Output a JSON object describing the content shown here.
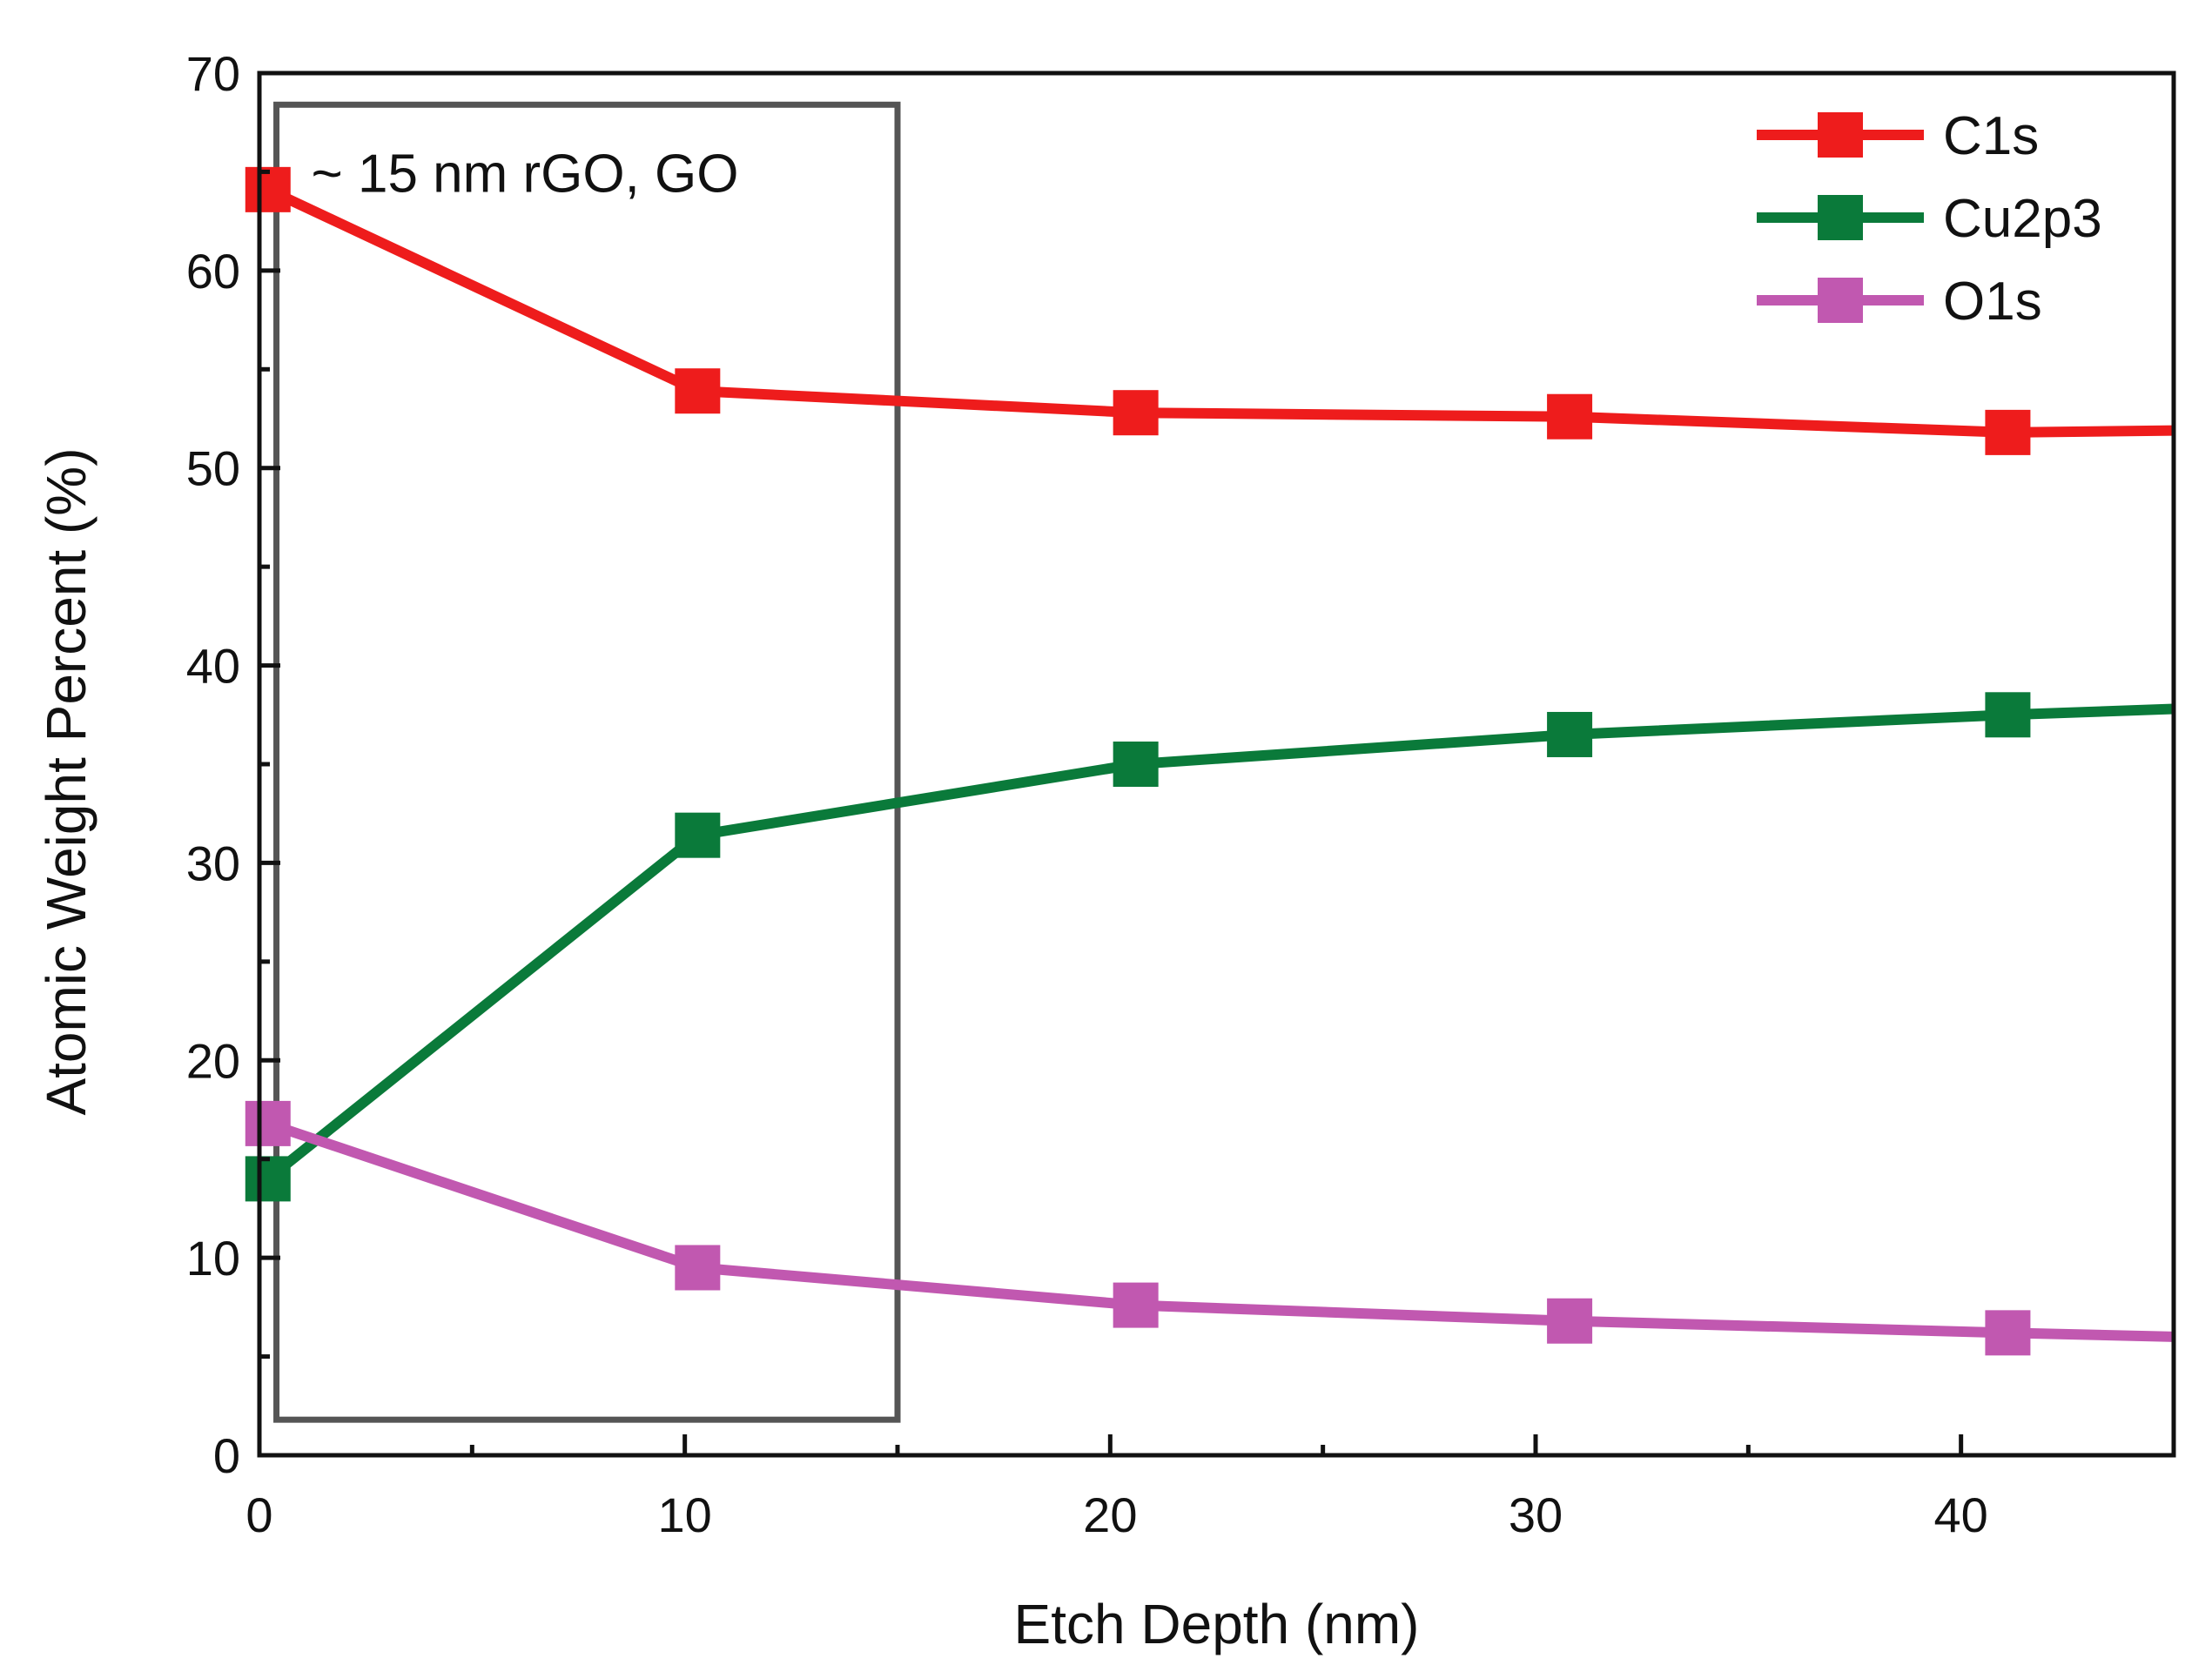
{
  "chart_data": {
    "type": "line",
    "title": "",
    "xlabel": "Etch Depth (nm)",
    "ylabel": "Atomic Weight Percent (%)",
    "xlim": [
      0,
      45
    ],
    "ylim": [
      0,
      70
    ],
    "xticks": [
      0,
      10,
      20,
      30,
      40
    ],
    "yticks": [
      0,
      10,
      20,
      30,
      40,
      50,
      60,
      70
    ],
    "grid": false,
    "legend_position": "top-right",
    "series": [
      {
        "name": "C1s",
        "color": "#ee1c1c",
        "marker": "square",
        "points": [
          {
            "x": 0.2,
            "y": 64.1
          },
          {
            "x": 10.3,
            "y": 53.9
          },
          {
            "x": 20.6,
            "y": 52.8
          },
          {
            "x": 30.8,
            "y": 52.6
          },
          {
            "x": 41.1,
            "y": 51.8
          }
        ],
        "line_end": {
          "x": 45,
          "y": 51.9
        }
      },
      {
        "name": "Cu2p3",
        "color": "#0a7a3a",
        "marker": "square",
        "points": [
          {
            "x": 0.2,
            "y": 14.0
          },
          {
            "x": 10.3,
            "y": 31.4
          },
          {
            "x": 20.6,
            "y": 35.0
          },
          {
            "x": 30.8,
            "y": 36.5
          },
          {
            "x": 41.1,
            "y": 37.5
          }
        ],
        "line_end": {
          "x": 45,
          "y": 37.8
        }
      },
      {
        "name": "O1s",
        "color": "#c158b0",
        "marker": "square",
        "points": [
          {
            "x": 0.2,
            "y": 16.8
          },
          {
            "x": 10.3,
            "y": 9.5
          },
          {
            "x": 20.6,
            "y": 7.6
          },
          {
            "x": 30.8,
            "y": 6.8
          },
          {
            "x": 41.1,
            "y": 6.2
          }
        ],
        "line_end": {
          "x": 45,
          "y": 6.0
        }
      }
    ],
    "annotations": [
      {
        "text": "~ 15 nm rGO, GO",
        "region": {
          "x0": 0.4,
          "x1": 15.0,
          "y0": 1.8,
          "y1": 68.4
        },
        "color": "#555555"
      }
    ]
  }
}
